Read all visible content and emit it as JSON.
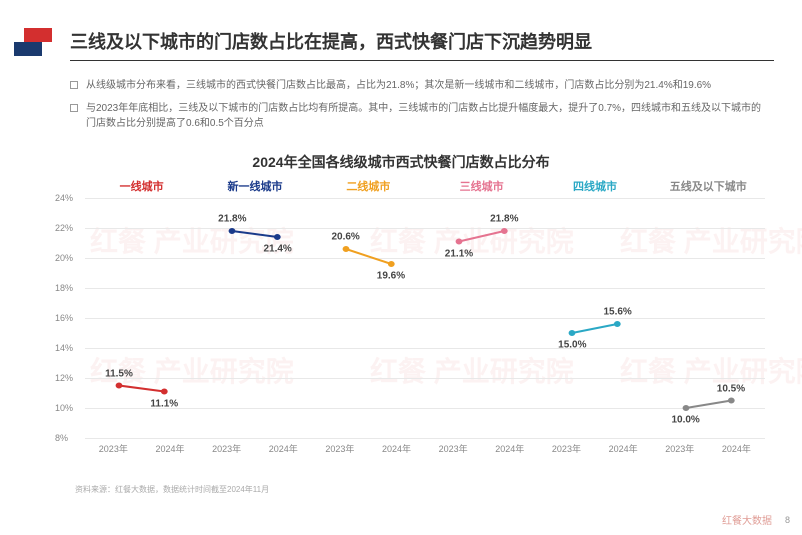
{
  "title": "三线及以下城市的门店数占比在提高，西式快餐门店下沉趋势明显",
  "bullets": [
    "从线级城市分布来看，三线城市的西式快餐门店数占比最高，占比为21.8%；其次是新一线城市和二线城市，门店数占比分别为21.4%和19.6%",
    "与2023年年底相比，三线及以下城市的门店数占比均有所提高。其中，三线城市的门店数占比提升幅度最大，提升了0.7%，四线城市和五线及以下城市的门店数占比分别提高了0.6和0.5个百分点"
  ],
  "chart": {
    "title": "2024年全国各线级城市西式快餐门店数占比分布",
    "ylim": [
      8,
      24
    ],
    "ytick_step": 2,
    "xlabels": [
      "2023年",
      "2024年"
    ],
    "background_color": "#ffffff",
    "grid_color": "#e8e8e8",
    "label_fontsize": 10,
    "tick_fontsize": 9,
    "tick_color": "#888888",
    "line_width": 2,
    "marker_size": 3,
    "panels": [
      {
        "name": "一线城市",
        "color": "#d32f2f",
        "values": [
          11.5,
          11.1
        ]
      },
      {
        "name": "新一线城市",
        "color": "#1a3a8a",
        "values": [
          21.8,
          21.4
        ]
      },
      {
        "name": "二线城市",
        "color": "#f0a020",
        "values": [
          20.6,
          19.6
        ]
      },
      {
        "name": "三线城市",
        "color": "#e57390",
        "values": [
          21.1,
          21.8
        ]
      },
      {
        "name": "四线城市",
        "color": "#2aa8c5",
        "values": [
          15.0,
          15.6
        ]
      },
      {
        "name": "五线及以下城市",
        "color": "#888888",
        "values": [
          10.0,
          10.5
        ]
      }
    ]
  },
  "source": "资料来源：红餐大数据，数据统计时间截至2024年11月",
  "watermark_text": "红餐 产业研究院",
  "footer_mark": "红餐大数据",
  "page_number": "8"
}
